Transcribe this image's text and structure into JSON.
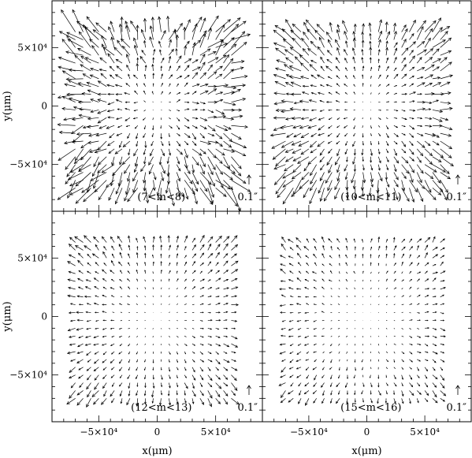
{
  "chart_data": {
    "type": "vector_field",
    "layout": "2x2 panels with shared axes",
    "xlabel": "x(μm)",
    "ylabel": "y(μm)",
    "xlim": [
      -90000,
      90000
    ],
    "ylim": [
      -90000,
      90000
    ],
    "xticks": [
      -50000,
      0,
      50000
    ],
    "yticks": [
      -50000,
      0,
      50000
    ],
    "xtick_labels": [
      "−5×10⁴",
      "0",
      "5×10⁴"
    ],
    "ytick_labels": [
      "−5×10⁴",
      "0",
      "5×10⁴"
    ],
    "grid": false,
    "scale_bar_label": "0.1″",
    "panels": [
      {
        "label": "(7<m<8)",
        "arrow_scale": 1.0,
        "jitter": 0.45
      },
      {
        "label": "(10<m<11)",
        "arrow_scale": 0.78,
        "jitter": 0.25
      },
      {
        "label": "(12<m<13)",
        "arrow_scale": 0.42,
        "jitter": 0.2
      },
      {
        "label": "(15<m<16)",
        "arrow_scale": 0.33,
        "jitter": 0.35
      }
    ]
  }
}
